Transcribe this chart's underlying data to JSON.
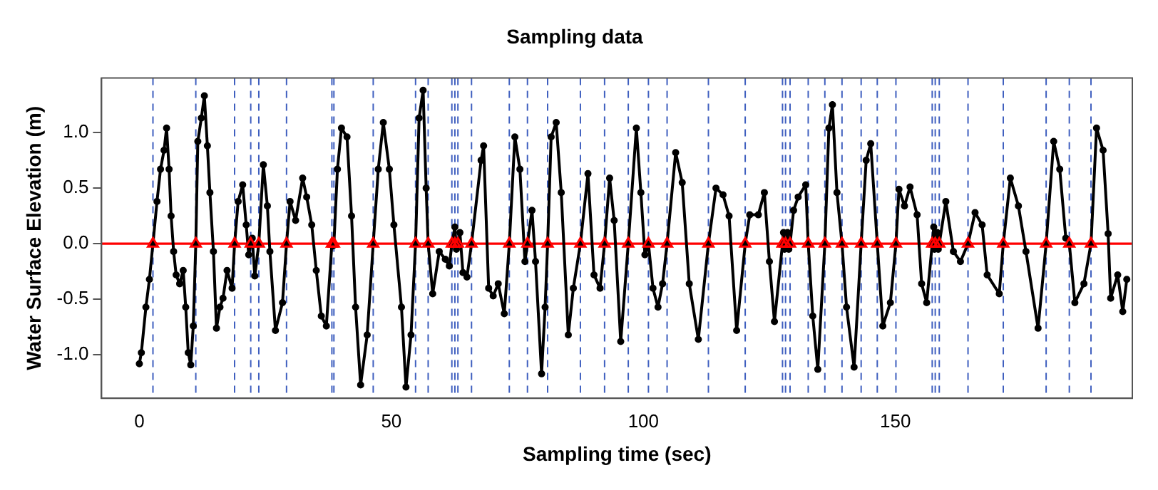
{
  "chart_data": {
    "type": "line",
    "title": "Sampling data",
    "xlabel": "Sampling time (sec)",
    "ylabel": "Water Surface Elevation (m)",
    "xlim": [
      -7.5,
      197
    ],
    "xticks": [
      0,
      50,
      100,
      150
    ],
    "ylim": [
      -1.39,
      1.49
    ],
    "yticks": [
      {
        "value": -1,
        "label": "-1.0"
      },
      {
        "value": -0.5,
        "label": "-0.5"
      },
      {
        "value": 0,
        "label": "0.0"
      },
      {
        "value": 0.5,
        "label": "0.5"
      },
      {
        "value": 1,
        "label": "1.0"
      }
    ],
    "grid": false,
    "legend": false,
    "series": [
      {
        "type": "line",
        "color": "#000000",
        "marker": "circle",
        "line_style": "solid",
        "x": [
          0,
          0.4,
          1.3,
          2.0,
          2.7,
          3.5,
          4.2,
          4.9,
          5.4,
          5.9,
          6.3,
          6.8,
          7.3,
          8.0,
          8.7,
          9.2,
          9.7,
          10.2,
          10.7,
          11.2,
          11.6,
          12.3,
          12.9,
          13.5,
          14.0,
          14.7,
          15.3,
          16.0,
          16.6,
          17.4,
          18.4,
          18.9,
          19.6,
          20.5,
          21.2,
          21.7,
          22.1,
          22.4,
          22.9,
          23.7,
          24.6,
          25.4,
          25.9,
          27.0,
          28.4,
          29.2,
          29.9,
          31.0,
          32.4,
          33.2,
          34.2,
          35.1,
          36.1,
          37.1,
          38.2,
          38.4,
          38.6,
          39.3,
          40.1,
          41.2,
          42.1,
          42.9,
          43.9,
          45.2,
          46.4,
          47.4,
          48.4,
          49.6,
          50.5,
          52.0,
          52.9,
          53.9,
          54.8,
          55.5,
          56.3,
          56.9,
          57.3,
          58.2,
          59.5,
          60.7,
          61.5,
          62.0,
          62.6,
          62.9,
          63.2,
          63.6,
          64.2,
          65.0,
          65.9,
          67.8,
          68.3,
          69.3,
          70.2,
          71.2,
          72.4,
          73.4,
          74.5,
          75.5,
          76.5,
          77.0,
          77.9,
          78.6,
          79.8,
          80.5,
          81.0,
          81.7,
          82.7,
          83.7,
          85.1,
          86.1,
          87.5,
          89.0,
          90.2,
          91.4,
          92.3,
          93.3,
          94.2,
          95.5,
          97.0,
          98.6,
          99.5,
          100.3,
          101.0,
          101.9,
          102.9,
          103.8,
          104.7,
          106.4,
          107.7,
          109.1,
          110.9,
          112.9,
          114.4,
          115.8,
          117.0,
          118.5,
          120.2,
          121.1,
          122.8,
          124.0,
          125.0,
          126.0,
          127.6,
          127.8,
          128.0,
          128.2,
          128.6,
          128.85,
          129.1,
          129.8,
          130.7,
          132.2,
          132.7,
          133.6,
          134.6,
          136.0,
          136.8,
          137.5,
          138.4,
          139.4,
          140.3,
          141.8,
          143.2,
          144.2,
          145.1,
          146.4,
          147.5,
          149.0,
          150.1,
          150.7,
          151.8,
          152.9,
          154.3,
          155.2,
          156.2,
          157.3,
          157.6,
          157.75,
          157.9,
          158.3,
          158.5,
          158.7,
          160.0,
          161.5,
          162.9,
          164.4,
          165.8,
          167.2,
          168.2,
          170.6,
          171.4,
          172.8,
          174.4,
          175.9,
          178.3,
          179.9,
          181.4,
          182.6,
          183.8,
          184.5,
          185.6,
          187.4,
          188.8,
          189.9,
          191.2,
          192.2,
          192.7,
          194.1,
          195.1,
          195.9
        ],
        "values": [
          -1.08,
          -0.98,
          -0.57,
          -0.32,
          0,
          0.38,
          0.67,
          0.84,
          1.04,
          0.67,
          0.25,
          -0.07,
          -0.28,
          -0.36,
          -0.24,
          -0.57,
          -0.98,
          -1.09,
          -0.74,
          0,
          0.92,
          1.13,
          1.33,
          0.88,
          0.46,
          -0.07,
          -0.76,
          -0.57,
          -0.49,
          -0.24,
          -0.4,
          0,
          0.38,
          0.53,
          0.17,
          -0.1,
          0,
          0.05,
          -0.29,
          0,
          0.71,
          0.34,
          -0.07,
          -0.78,
          -0.53,
          0,
          0.38,
          0.21,
          0.59,
          0.42,
          0.17,
          -0.24,
          -0.65,
          -0.74,
          0,
          -0.02,
          0,
          0.67,
          1.04,
          0.96,
          0.25,
          -0.57,
          -1.27,
          -0.82,
          0,
          0.67,
          1.09,
          0.67,
          0.17,
          -0.57,
          -1.29,
          -0.82,
          0,
          1.13,
          1.38,
          0.5,
          0,
          -0.45,
          -0.07,
          -0.14,
          -0.2,
          0,
          0.15,
          -0.05,
          0,
          0.1,
          -0.26,
          -0.3,
          0,
          0.75,
          0.88,
          -0.4,
          -0.47,
          -0.36,
          -0.63,
          0,
          0.96,
          0.67,
          -0.16,
          0,
          0.3,
          -0.16,
          -1.17,
          -0.57,
          0,
          0.96,
          1.09,
          0.46,
          -0.82,
          -0.4,
          0,
          0.63,
          -0.28,
          -0.4,
          0,
          0.59,
          0.21,
          -0.88,
          0,
          1.04,
          0.46,
          -0.1,
          0,
          -0.4,
          -0.57,
          -0.36,
          0,
          0.82,
          0.55,
          -0.36,
          -0.86,
          0,
          0.5,
          0.44,
          0.25,
          -0.78,
          0,
          0.26,
          0.26,
          0.46,
          -0.16,
          -0.7,
          0,
          0.1,
          -0.05,
          0,
          0.1,
          -0.05,
          0,
          0.3,
          0.42,
          0.53,
          0,
          -0.65,
          -1.13,
          0,
          1.04,
          1.25,
          0.46,
          0,
          -0.57,
          -1.11,
          0,
          0.75,
          0.9,
          0,
          -0.74,
          -0.53,
          0,
          0.49,
          0.34,
          0.51,
          0.26,
          -0.36,
          -0.53,
          0,
          0.15,
          -0.05,
          0,
          0.1,
          -0.05,
          0,
          0.38,
          -0.07,
          -0.16,
          0,
          0.28,
          0.17,
          -0.28,
          -0.45,
          0,
          0.59,
          0.34,
          -0.07,
          -0.76,
          0,
          0.92,
          0.67,
          0.05,
          0,
          -0.53,
          -0.36,
          0,
          1.04,
          0.84,
          0.09,
          -0.49,
          -0.28,
          -0.61,
          -0.32
        ]
      },
      {
        "type": "scatter",
        "color": "#ff0000",
        "marker": "triangle",
        "x": [
          2.7,
          11.2,
          18.9,
          22.1,
          23.7,
          29.2,
          38.2,
          38.6,
          46.4,
          54.8,
          57.3,
          62.0,
          62.6,
          63.2,
          65.9,
          73.4,
          77.0,
          81.0,
          87.5,
          92.3,
          97.0,
          101.0,
          104.7,
          112.9,
          120.2,
          127.6,
          128.2,
          129.1,
          132.7,
          136.0,
          139.4,
          143.2,
          146.4,
          150.1,
          157.3,
          157.9,
          158.7,
          164.4,
          171.4,
          179.9,
          184.5,
          188.8
        ],
        "values": [
          0,
          0,
          0,
          0,
          0,
          0,
          0,
          0,
          0,
          0,
          0,
          0,
          0,
          0,
          0,
          0,
          0,
          0,
          0,
          0,
          0,
          0,
          0,
          0,
          0,
          0,
          0,
          0,
          0,
          0,
          0,
          0,
          0,
          0,
          0,
          0,
          0,
          0,
          0,
          0,
          0,
          0
        ]
      }
    ],
    "ref_lines": [
      {
        "axis": "y",
        "value": 0,
        "color": "#ff0000",
        "line_style": "solid"
      },
      {
        "axis": "x",
        "value": 2.7,
        "color": "#3f5fbf",
        "line_style": "dashed"
      },
      {
        "axis": "x",
        "value": 11.2,
        "color": "#3f5fbf",
        "line_style": "dashed"
      },
      {
        "axis": "x",
        "value": 18.9,
        "color": "#3f5fbf",
        "line_style": "dashed"
      },
      {
        "axis": "x",
        "value": 22.1,
        "color": "#3f5fbf",
        "line_style": "dashed"
      },
      {
        "axis": "x",
        "value": 23.7,
        "color": "#3f5fbf",
        "line_style": "dashed"
      },
      {
        "axis": "x",
        "value": 29.2,
        "color": "#3f5fbf",
        "line_style": "dashed"
      },
      {
        "axis": "x",
        "value": 38.2,
        "color": "#3f5fbf",
        "line_style": "dashed"
      },
      {
        "axis": "x",
        "value": 38.6,
        "color": "#3f5fbf",
        "line_style": "dashed"
      },
      {
        "axis": "x",
        "value": 46.4,
        "color": "#3f5fbf",
        "line_style": "dashed"
      },
      {
        "axis": "x",
        "value": 54.8,
        "color": "#3f5fbf",
        "line_style": "dashed"
      },
      {
        "axis": "x",
        "value": 57.3,
        "color": "#3f5fbf",
        "line_style": "dashed"
      },
      {
        "axis": "x",
        "value": 62.0,
        "color": "#3f5fbf",
        "line_style": "dashed"
      },
      {
        "axis": "x",
        "value": 62.6,
        "color": "#3f5fbf",
        "line_style": "dashed"
      },
      {
        "axis": "x",
        "value": 63.2,
        "color": "#3f5fbf",
        "line_style": "dashed"
      },
      {
        "axis": "x",
        "value": 65.9,
        "color": "#3f5fbf",
        "line_style": "dashed"
      },
      {
        "axis": "x",
        "value": 73.4,
        "color": "#3f5fbf",
        "line_style": "dashed"
      },
      {
        "axis": "x",
        "value": 77.0,
        "color": "#3f5fbf",
        "line_style": "dashed"
      },
      {
        "axis": "x",
        "value": 81.0,
        "color": "#3f5fbf",
        "line_style": "dashed"
      },
      {
        "axis": "x",
        "value": 87.5,
        "color": "#3f5fbf",
        "line_style": "dashed"
      },
      {
        "axis": "x",
        "value": 92.3,
        "color": "#3f5fbf",
        "line_style": "dashed"
      },
      {
        "axis": "x",
        "value": 97.0,
        "color": "#3f5fbf",
        "line_style": "dashed"
      },
      {
        "axis": "x",
        "value": 101.0,
        "color": "#3f5fbf",
        "line_style": "dashed"
      },
      {
        "axis": "x",
        "value": 104.7,
        "color": "#3f5fbf",
        "line_style": "dashed"
      },
      {
        "axis": "x",
        "value": 112.9,
        "color": "#3f5fbf",
        "line_style": "dashed"
      },
      {
        "axis": "x",
        "value": 120.2,
        "color": "#3f5fbf",
        "line_style": "dashed"
      },
      {
        "axis": "x",
        "value": 127.6,
        "color": "#3f5fbf",
        "line_style": "dashed"
      },
      {
        "axis": "x",
        "value": 128.2,
        "color": "#3f5fbf",
        "line_style": "dashed"
      },
      {
        "axis": "x",
        "value": 129.1,
        "color": "#3f5fbf",
        "line_style": "dashed"
      },
      {
        "axis": "x",
        "value": 132.7,
        "color": "#3f5fbf",
        "line_style": "dashed"
      },
      {
        "axis": "x",
        "value": 136.0,
        "color": "#3f5fbf",
        "line_style": "dashed"
      },
      {
        "axis": "x",
        "value": 139.4,
        "color": "#3f5fbf",
        "line_style": "dashed"
      },
      {
        "axis": "x",
        "value": 143.2,
        "color": "#3f5fbf",
        "line_style": "dashed"
      },
      {
        "axis": "x",
        "value": 146.4,
        "color": "#3f5fbf",
        "line_style": "dashed"
      },
      {
        "axis": "x",
        "value": 150.1,
        "color": "#3f5fbf",
        "line_style": "dashed"
      },
      {
        "axis": "x",
        "value": 157.3,
        "color": "#3f5fbf",
        "line_style": "dashed"
      },
      {
        "axis": "x",
        "value": 157.9,
        "color": "#3f5fbf",
        "line_style": "dashed"
      },
      {
        "axis": "x",
        "value": 158.7,
        "color": "#3f5fbf",
        "line_style": "dashed"
      },
      {
        "axis": "x",
        "value": 164.4,
        "color": "#3f5fbf",
        "line_style": "dashed"
      },
      {
        "axis": "x",
        "value": 171.4,
        "color": "#3f5fbf",
        "line_style": "dashed"
      },
      {
        "axis": "x",
        "value": 179.9,
        "color": "#3f5fbf",
        "line_style": "dashed"
      },
      {
        "axis": "x",
        "value": 184.5,
        "color": "#3f5fbf",
        "line_style": "dashed"
      },
      {
        "axis": "x",
        "value": 188.8,
        "color": "#3f5fbf",
        "line_style": "dashed"
      }
    ]
  }
}
